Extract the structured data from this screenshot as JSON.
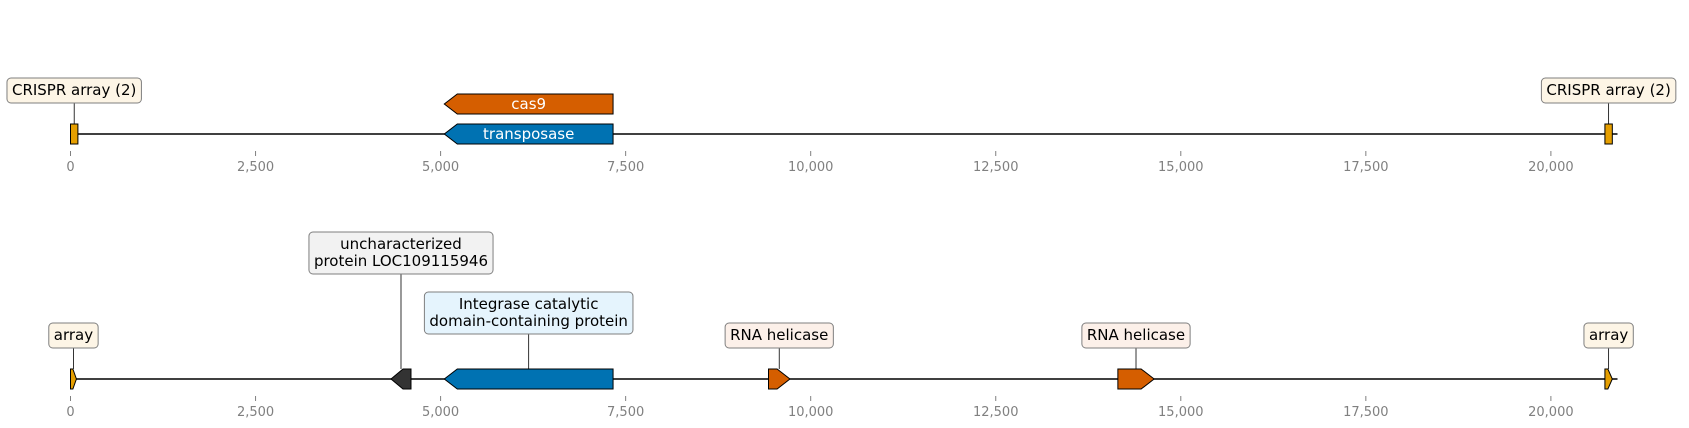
{
  "axis": {
    "min": 0,
    "max": 20900,
    "ticks": [
      0,
      2500,
      5000,
      7500,
      10000,
      12500,
      15000,
      17500,
      20000
    ],
    "tick_labels": [
      "0",
      "2,500",
      "5,000",
      "7,500",
      "10,000",
      "12,500",
      "15,000",
      "17,500",
      "20,000"
    ]
  },
  "tracks": [
    {
      "id": "track-1",
      "features": [
        {
          "id": "crispr-left",
          "name": "CRISPR array (2)",
          "start": 0,
          "end": 100,
          "strand": 0,
          "color": "#e69f00",
          "label_mode": "box",
          "label_lines": [
            "CRISPR array (2)"
          ],
          "box_fill": "#fdf5e6",
          "level": 0
        },
        {
          "id": "transposase",
          "name": "transposase",
          "start": 5050,
          "end": 7330,
          "strand": -1,
          "color": "#0072b2",
          "label_mode": "inline",
          "label_lines": [
            "transposase"
          ],
          "level": 0
        },
        {
          "id": "cas9",
          "name": "cas9",
          "start": 5050,
          "end": 7330,
          "strand": -1,
          "color": "#d55e00",
          "label_mode": "inline",
          "label_lines": [
            "cas9"
          ],
          "level": 1
        },
        {
          "id": "crispr-right",
          "name": "CRISPR array (2)",
          "start": 20730,
          "end": 20830,
          "strand": 0,
          "color": "#e69f00",
          "label_mode": "box",
          "label_lines": [
            "CRISPR array (2)"
          ],
          "box_fill": "#fdf5e6",
          "level": 0
        }
      ]
    },
    {
      "id": "track-2",
      "features": [
        {
          "id": "array-left",
          "name": "array",
          "start": 0,
          "end": 80,
          "strand": 1,
          "color": "#e69f00",
          "label_mode": "box",
          "label_lines": [
            "array"
          ],
          "box_fill": "#fdf5e6",
          "level": 0
        },
        {
          "id": "uncharacterized",
          "name": "uncharacterized protein LOC109115946",
          "start": 4330,
          "end": 4600,
          "strand": -1,
          "color": "#333333",
          "label_mode": "box",
          "label_lines": [
            "uncharacterized",
            "protein LOC109115946"
          ],
          "box_fill": "#f2f2f2",
          "level": 2
        },
        {
          "id": "integrase",
          "name": "Integrase catalytic domain-containing protein",
          "start": 5050,
          "end": 7330,
          "strand": -1,
          "color": "#0072b2",
          "label_mode": "box",
          "label_lines": [
            "Integrase catalytic",
            "domain-containing protein"
          ],
          "box_fill": "#e5f4fd",
          "level": 1
        },
        {
          "id": "rna-helicase-1",
          "name": "RNA helicase",
          "start": 9430,
          "end": 9720,
          "strand": 1,
          "color": "#d55e00",
          "label_mode": "box",
          "label_lines": [
            "RNA helicase"
          ],
          "box_fill": "#fcf0e9",
          "level": 0
        },
        {
          "id": "rna-helicase-2",
          "name": "RNA helicase",
          "start": 14150,
          "end": 14640,
          "strand": 1,
          "color": "#d55e00",
          "label_mode": "box",
          "label_lines": [
            "RNA helicase"
          ],
          "box_fill": "#fcf0e9",
          "level": 0
        },
        {
          "id": "array-right",
          "name": "array",
          "start": 20730,
          "end": 20830,
          "strand": 1,
          "color": "#e69f00",
          "label_mode": "box",
          "label_lines": [
            "array"
          ],
          "box_fill": "#fdf5e6",
          "level": 0
        }
      ]
    }
  ]
}
